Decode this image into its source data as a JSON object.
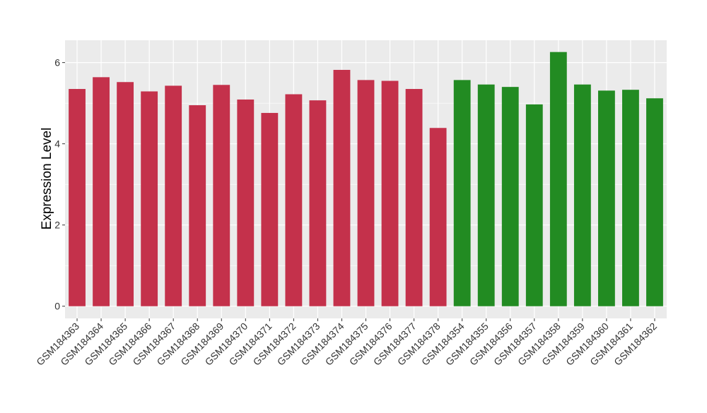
{
  "chart_data": {
    "type": "bar",
    "title": "",
    "xlabel": "",
    "ylabel": "Expression Level",
    "ylim": [
      -0.3,
      6.55
    ],
    "yticks": [
      0,
      2,
      4,
      6
    ],
    "grid": true,
    "legend": "none",
    "categories": [
      "GSM184363",
      "GSM184364",
      "GSM184365",
      "GSM184366",
      "GSM184367",
      "GSM184368",
      "GSM184369",
      "GSM184370",
      "GSM184371",
      "GSM184372",
      "GSM184373",
      "GSM184374",
      "GSM184375",
      "GSM184376",
      "GSM184377",
      "GSM184378",
      "GSM184354",
      "GSM184355",
      "GSM184356",
      "GSM184357",
      "GSM184358",
      "GSM184359",
      "GSM184360",
      "GSM184361",
      "GSM184362"
    ],
    "values": [
      5.35,
      5.64,
      5.52,
      5.29,
      5.43,
      4.95,
      5.45,
      5.09,
      4.76,
      5.22,
      5.07,
      5.82,
      5.57,
      5.55,
      5.35,
      4.39,
      5.57,
      5.46,
      5.4,
      4.97,
      6.26,
      5.46,
      5.31,
      5.33,
      5.12
    ],
    "group": [
      0,
      0,
      0,
      0,
      0,
      0,
      0,
      0,
      0,
      0,
      0,
      0,
      0,
      0,
      0,
      0,
      1,
      1,
      1,
      1,
      1,
      1,
      1,
      1,
      1
    ],
    "colors": {
      "group_0": "#c4314b",
      "group_1": "#228b22",
      "panel_background": "#ebebeb",
      "grid": "#ffffff"
    }
  }
}
